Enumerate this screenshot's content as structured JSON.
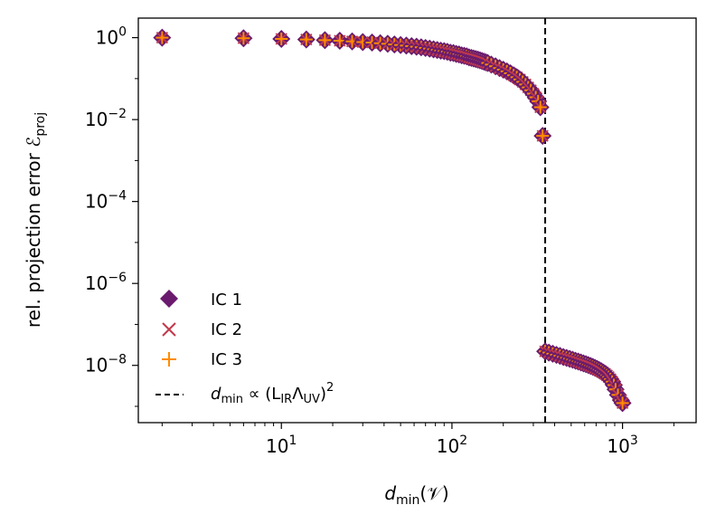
{
  "chart_data": {
    "type": "scatter",
    "xscale": "log",
    "yscale": "log",
    "xlim": [
      1.45,
      2700
    ],
    "ylim": [
      4e-10,
      3
    ],
    "xlabel": {
      "main": "d",
      "sub": "min",
      "rest": "(𝒱)"
    },
    "ylabel": {
      "main": "rel. projection error ℰ",
      "sub": "proj"
    },
    "x_ticks": [
      {
        "value": 10,
        "base": "10",
        "exp": "1"
      },
      {
        "value": 100,
        "base": "10",
        "exp": "2"
      },
      {
        "value": 1000,
        "base": "10",
        "exp": "3"
      }
    ],
    "y_ticks": [
      {
        "value": 1,
        "base": "10",
        "exp": "0"
      },
      {
        "value": 0.01,
        "base": "10",
        "exp": "−2"
      },
      {
        "value": 0.0001,
        "base": "10",
        "exp": "−4"
      },
      {
        "value": 1e-06,
        "base": "10",
        "exp": "−6"
      },
      {
        "value": 1e-08,
        "base": "10",
        "exp": "−8"
      }
    ],
    "vline": {
      "x": 352,
      "style": "dashed",
      "color": "#000000"
    },
    "legend": {
      "position": "lower-left",
      "entries": [
        {
          "label": "IC 1",
          "marker": "diamond",
          "color": "#6a1b6e"
        },
        {
          "label": "IC 2",
          "marker": "x",
          "color": "#c0394b"
        },
        {
          "label": "IC 3",
          "marker": "plus",
          "color": "#ff8c00"
        },
        {
          "label": "d",
          "sub": "min",
          "rest": " ∝ (L",
          "sub2": "IR",
          "rest2": "Λ",
          "sub3": "UV",
          "rest3": ")",
          "sup": "2",
          "marker": "dashed-line",
          "color": "#000000"
        }
      ]
    },
    "series": [
      {
        "name": "IC 1",
        "marker": "diamond",
        "color": "#6a1b6e"
      },
      {
        "name": "IC 2",
        "marker": "x",
        "color": "#c0394b"
      },
      {
        "name": "IC 3",
        "marker": "plus",
        "color": "#ff8c00"
      }
    ],
    "points": [
      [
        2,
        1.0
      ],
      [
        6,
        0.97
      ],
      [
        10,
        0.93
      ],
      [
        14,
        0.9
      ],
      [
        18,
        0.87
      ],
      [
        22,
        0.84
      ],
      [
        26,
        0.81
      ],
      [
        30,
        0.78
      ],
      [
        34,
        0.76
      ],
      [
        38,
        0.73
      ],
      [
        42,
        0.71
      ],
      [
        46,
        0.68
      ],
      [
        50,
        0.66
      ],
      [
        54,
        0.64
      ],
      [
        58,
        0.62
      ],
      [
        62,
        0.6
      ],
      [
        66,
        0.58
      ],
      [
        70,
        0.56
      ],
      [
        74,
        0.54
      ],
      [
        78,
        0.52
      ],
      [
        82,
        0.5
      ],
      [
        86,
        0.48
      ],
      [
        90,
        0.47
      ],
      [
        94,
        0.45
      ],
      [
        98,
        0.43
      ],
      [
        102,
        0.42
      ],
      [
        106,
        0.4
      ],
      [
        110,
        0.39
      ],
      [
        114,
        0.37
      ],
      [
        118,
        0.36
      ],
      [
        122,
        0.35
      ],
      [
        126,
        0.33
      ],
      [
        130,
        0.32
      ],
      [
        134,
        0.31
      ],
      [
        138,
        0.3
      ],
      [
        142,
        0.29
      ],
      [
        146,
        0.28
      ],
      [
        150,
        0.27
      ],
      [
        154,
        0.26
      ],
      [
        158,
        0.25
      ],
      [
        162,
        0.24
      ],
      [
        170,
        0.22
      ],
      [
        180,
        0.2
      ],
      [
        190,
        0.18
      ],
      [
        200,
        0.165
      ],
      [
        210,
        0.15
      ],
      [
        220,
        0.135
      ],
      [
        230,
        0.12
      ],
      [
        240,
        0.108
      ],
      [
        250,
        0.095
      ],
      [
        260,
        0.083
      ],
      [
        270,
        0.072
      ],
      [
        280,
        0.061
      ],
      [
        290,
        0.052
      ],
      [
        300,
        0.043
      ],
      [
        310,
        0.035
      ],
      [
        320,
        0.028
      ],
      [
        330,
        0.02
      ],
      [
        340,
        0.004
      ],
      [
        352,
        2.2e-08
      ],
      [
        370,
        2.05e-08
      ],
      [
        390,
        1.92e-08
      ],
      [
        410,
        1.8e-08
      ],
      [
        430,
        1.7e-08
      ],
      [
        450,
        1.6e-08
      ],
      [
        470,
        1.52e-08
      ],
      [
        490,
        1.44e-08
      ],
      [
        510,
        1.37e-08
      ],
      [
        530,
        1.3e-08
      ],
      [
        550,
        1.24e-08
      ],
      [
        570,
        1.18e-08
      ],
      [
        590,
        1.12e-08
      ],
      [
        610,
        1.07e-08
      ],
      [
        630,
        1.02e-08
      ],
      [
        650,
        9.7e-09
      ],
      [
        670,
        9.2e-09
      ],
      [
        690,
        8.7e-09
      ],
      [
        710,
        8.2e-09
      ],
      [
        730,
        7.7e-09
      ],
      [
        750,
        7.2e-09
      ],
      [
        770,
        6.7e-09
      ],
      [
        790,
        6.2e-09
      ],
      [
        810,
        5.7e-09
      ],
      [
        830,
        5.2e-09
      ],
      [
        850,
        4.6e-09
      ],
      [
        870,
        4e-09
      ],
      [
        890,
        3.3e-09
      ],
      [
        910,
        2.6e-09
      ],
      [
        940,
        1.9e-09
      ],
      [
        980,
        1.4e-09
      ],
      [
        1000,
        1.2e-09
      ]
    ]
  }
}
